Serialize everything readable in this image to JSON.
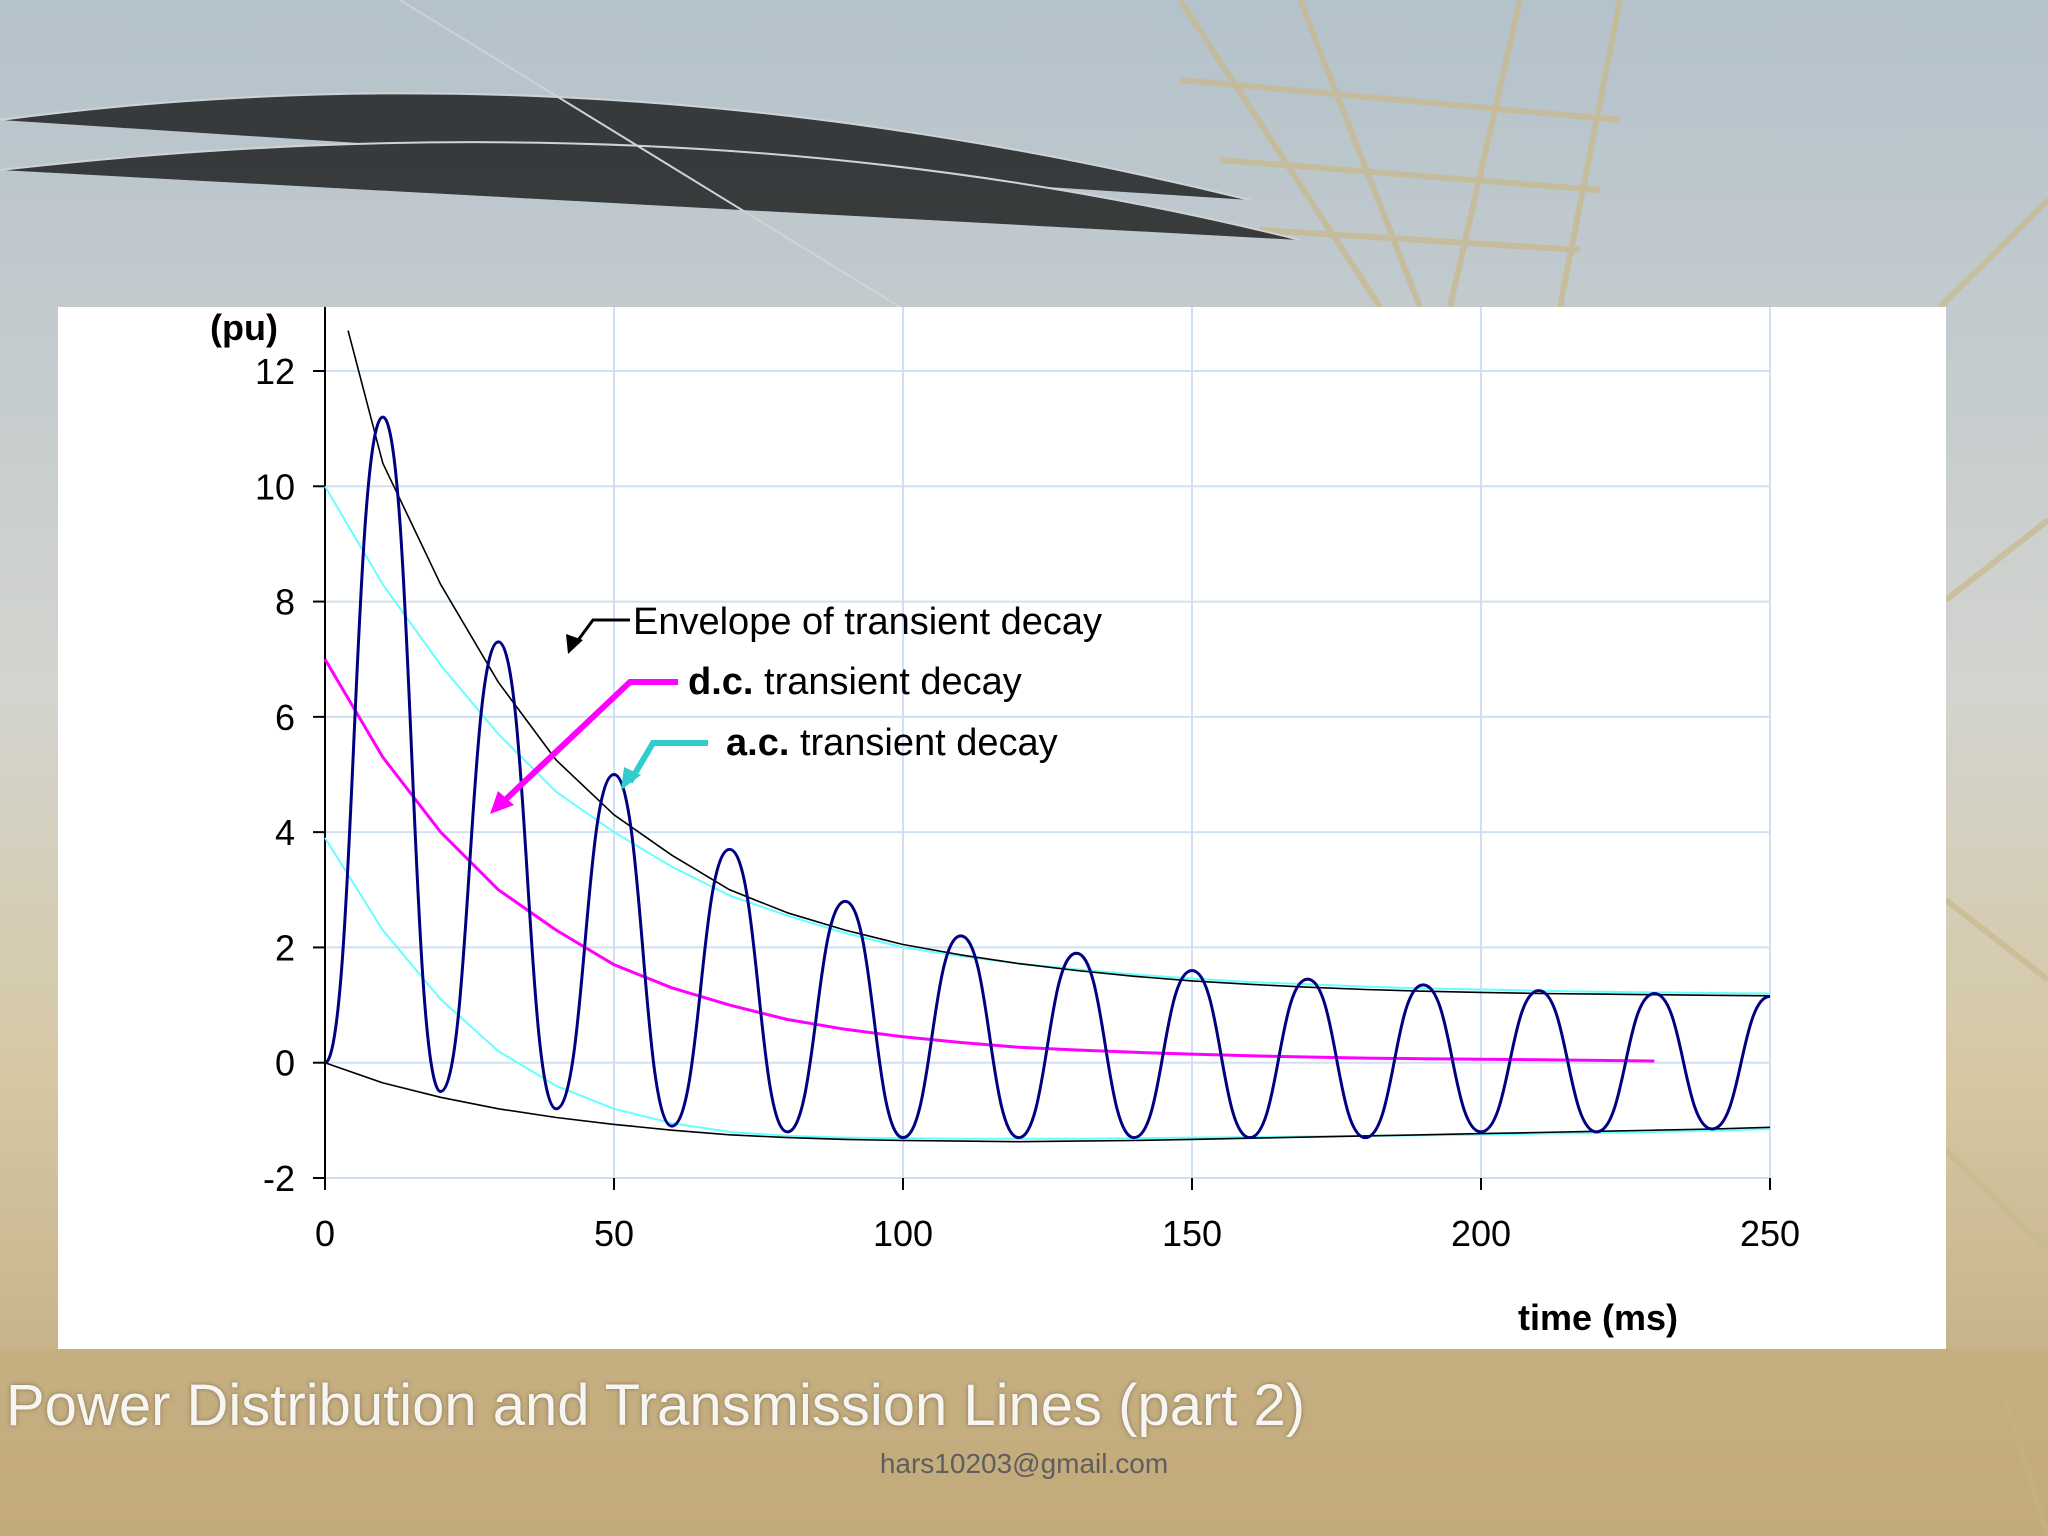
{
  "slide": {
    "footer_title": "Power Distribution and Transmission Lines (part 2)",
    "footer_email": "hars10203@gmail.com"
  },
  "chart_data": {
    "type": "line",
    "title": "",
    "xlabel": "time (ms)",
    "ylabel": "(pu)",
    "xlim": [
      0,
      250
    ],
    "ylim": [
      -2,
      12
    ],
    "xticks": [
      0,
      50,
      100,
      150,
      200,
      250
    ],
    "yticks": [
      -2,
      0,
      2,
      4,
      6,
      8,
      10,
      12
    ],
    "grid": true,
    "annotations": [
      {
        "bold": "",
        "text": "Envelope of transient decay",
        "color": "#000000"
      },
      {
        "bold": "d.c.",
        "text": " transient decay",
        "color": "#ff00ff"
      },
      {
        "bold": "a.c.",
        "text": " transient decay",
        "color": "#33cccc"
      }
    ],
    "series": [
      {
        "color": "#000080",
        "x": [
          0,
          10,
          20,
          30,
          40,
          50,
          60,
          70,
          80,
          90,
          100,
          110,
          120,
          130,
          140,
          150,
          160,
          170,
          180,
          190,
          200,
          210,
          220,
          230,
          240,
          250
        ],
        "y": [
          0,
          11.2,
          -0.5,
          7.3,
          -0.8,
          5.0,
          -1.1,
          3.7,
          -1.2,
          2.8,
          -1.3,
          2.2,
          -1.3,
          1.9,
          -1.3,
          1.6,
          -1.3,
          1.45,
          -1.3,
          1.35,
          -1.2,
          1.25,
          -1.2,
          1.2,
          -1.15,
          1.15
        ]
      },
      {
        "color": "#ff00ff",
        "x": [
          0,
          10,
          20,
          30,
          40,
          50,
          60,
          70,
          80,
          90,
          100,
          110,
          120,
          130,
          140,
          150,
          160,
          170,
          180,
          190,
          200,
          210,
          220,
          230
        ],
        "y": [
          7.0,
          5.3,
          4.0,
          3.0,
          2.3,
          1.7,
          1.3,
          1.0,
          0.75,
          0.58,
          0.45,
          0.35,
          0.27,
          0.22,
          0.18,
          0.15,
          0.12,
          0.1,
          0.08,
          0.07,
          0.06,
          0.05,
          0.04,
          0.03
        ]
      },
      {
        "color": "#66ffff",
        "x": [
          0,
          10,
          20,
          30,
          40,
          50,
          60,
          70,
          80,
          90,
          100,
          110,
          120,
          130,
          140,
          150,
          160,
          170,
          180,
          190,
          200,
          210,
          220,
          230,
          240,
          250
        ],
        "y": [
          10.0,
          8.3,
          6.9,
          5.7,
          4.7,
          4.0,
          3.4,
          2.9,
          2.55,
          2.25,
          2.0,
          1.85,
          1.72,
          1.62,
          1.53,
          1.46,
          1.4,
          1.36,
          1.32,
          1.29,
          1.27,
          1.25,
          1.23,
          1.22,
          1.21,
          1.2
        ]
      },
      {
        "color": "#66ffff",
        "x": [
          0,
          10,
          20,
          30,
          40,
          50,
          60,
          70,
          80,
          90,
          100,
          110,
          120,
          130,
          140,
          150,
          160,
          170,
          180,
          190,
          200,
          210,
          220,
          230,
          240,
          250
        ],
        "y": [
          3.9,
          2.3,
          1.1,
          0.2,
          -0.4,
          -0.8,
          -1.05,
          -1.2,
          -1.27,
          -1.3,
          -1.31,
          -1.32,
          -1.32,
          -1.32,
          -1.31,
          -1.3,
          -1.29,
          -1.28,
          -1.27,
          -1.26,
          -1.25,
          -1.23,
          -1.22,
          -1.2,
          -1.18,
          -1.15
        ]
      },
      {
        "color": "#000000",
        "x": [
          4,
          10,
          20,
          30,
          40,
          50,
          60,
          70,
          80,
          90,
          100,
          110,
          120,
          130,
          140,
          150,
          160,
          170,
          180,
          190,
          200,
          210,
          220,
          230,
          240,
          250
        ],
        "y": [
          12.7,
          10.4,
          8.3,
          6.6,
          5.25,
          4.3,
          3.6,
          3.0,
          2.6,
          2.3,
          2.05,
          1.87,
          1.72,
          1.6,
          1.5,
          1.42,
          1.36,
          1.31,
          1.27,
          1.24,
          1.22,
          1.2,
          1.19,
          1.18,
          1.17,
          1.16
        ]
      },
      {
        "color": "#000000",
        "x": [
          0,
          10,
          20,
          30,
          40,
          50,
          60,
          70,
          80,
          90,
          100,
          110,
          120,
          130,
          140,
          150,
          160,
          170,
          180,
          190,
          200,
          210,
          220,
          230,
          240,
          250
        ],
        "y": [
          0,
          -0.35,
          -0.6,
          -0.8,
          -0.95,
          -1.07,
          -1.17,
          -1.25,
          -1.3,
          -1.33,
          -1.35,
          -1.36,
          -1.37,
          -1.36,
          -1.35,
          -1.33,
          -1.31,
          -1.29,
          -1.27,
          -1.25,
          -1.23,
          -1.21,
          -1.19,
          -1.17,
          -1.15,
          -1.12
        ]
      }
    ]
  }
}
